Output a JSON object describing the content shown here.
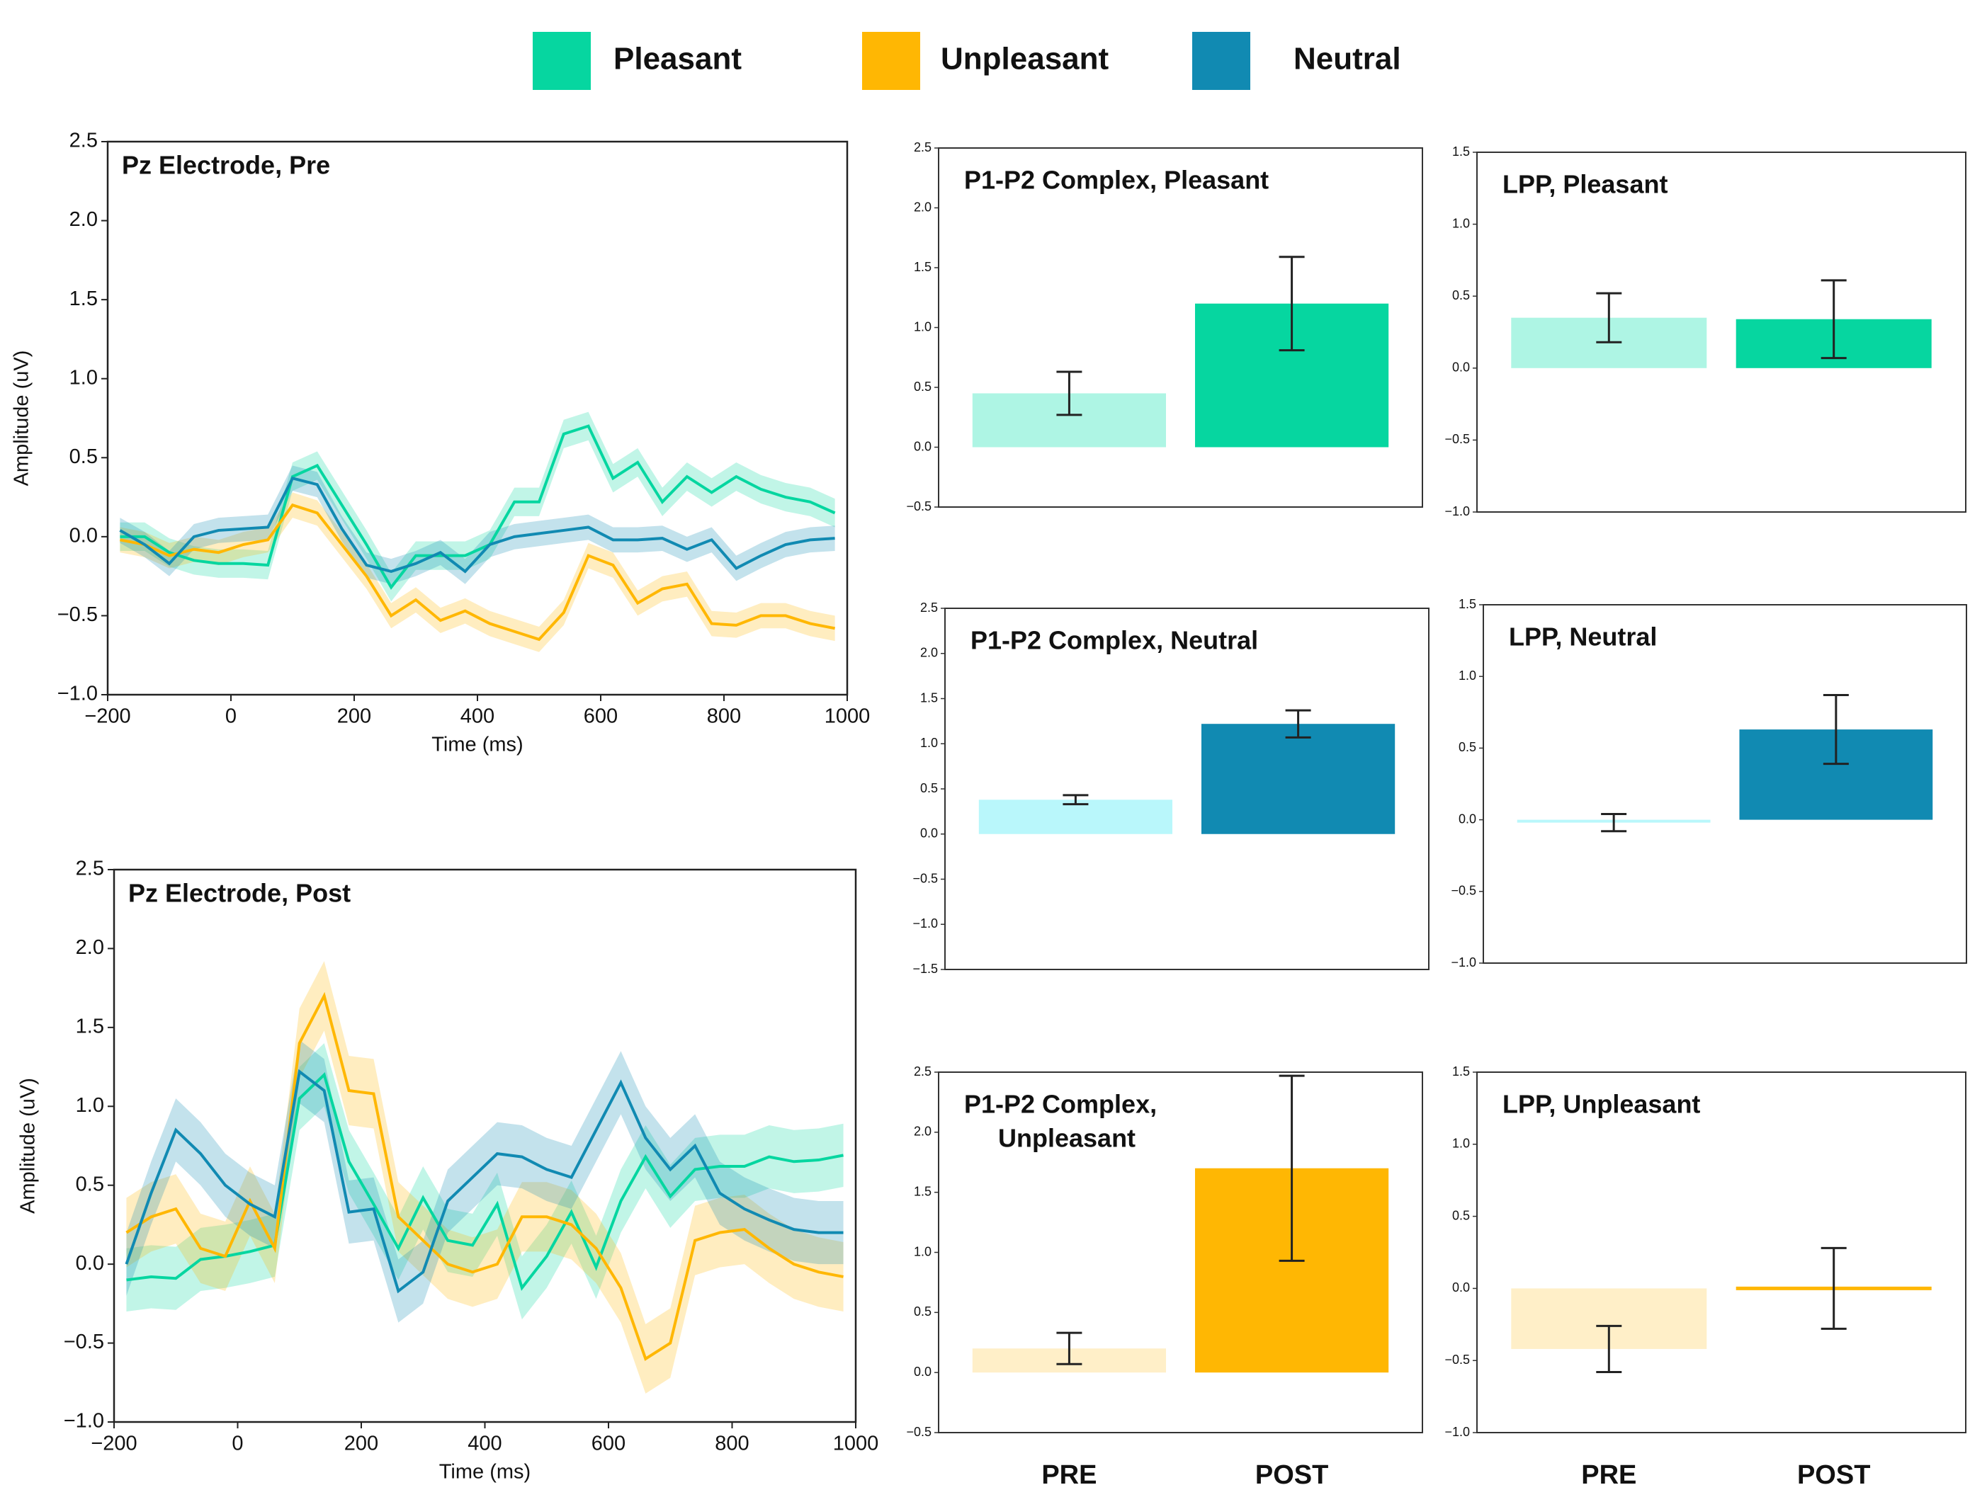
{
  "chart_data": [
    {
      "type": "line",
      "title": "Pz Electrode, Pre",
      "xlabel": "Time (ms)",
      "ylabel": "Amplitude (uV)",
      "legend": "top",
      "x": [
        -180,
        -140,
        -100,
        -60,
        -20,
        20,
        60,
        100,
        140,
        180,
        220,
        260,
        300,
        340,
        380,
        420,
        460,
        500,
        540,
        580,
        620,
        660,
        700,
        740,
        780,
        820,
        860,
        900,
        940,
        980
      ],
      "xlim": [
        -200,
        1000
      ],
      "xticks": [
        {
          "value": -200,
          "label": "−200"
        },
        0,
        200,
        400,
        600,
        800,
        1000
      ],
      "ylim": [
        -1,
        2.5
      ],
      "yticks": [
        {
          "value": -1,
          "label": "−1.0"
        },
        {
          "value": -0.5,
          "label": "−0.5"
        },
        {
          "value": 0,
          "label": "0.0"
        },
        0.5,
        {
          "value": 1,
          "label": "1.0"
        },
        1.5,
        {
          "value": 2,
          "label": "2.0"
        },
        2.5
      ],
      "series": [
        {
          "name": "Pleasant",
          "color": "#06d6a0",
          "band": 0.09,
          "values": [
            0.0,
            0.0,
            -0.1,
            -0.15,
            -0.17,
            -0.17,
            -0.18,
            0.38,
            0.45,
            0.2,
            -0.05,
            -0.32,
            -0.12,
            -0.12,
            -0.12,
            -0.05,
            0.22,
            0.22,
            0.65,
            0.7,
            0.37,
            0.47,
            0.22,
            0.38,
            0.28,
            0.38,
            0.3,
            0.25,
            0.22,
            0.15
          ]
        },
        {
          "name": "Unpleasant",
          "color": "#ffb703",
          "band": 0.08,
          "values": [
            -0.02,
            -0.05,
            -0.12,
            -0.08,
            -0.1,
            -0.05,
            -0.02,
            0.2,
            0.15,
            -0.05,
            -0.25,
            -0.5,
            -0.4,
            -0.53,
            -0.47,
            -0.55,
            -0.6,
            -0.65,
            -0.48,
            -0.12,
            -0.18,
            -0.42,
            -0.33,
            -0.3,
            -0.55,
            -0.56,
            -0.5,
            -0.5,
            -0.55,
            -0.58
          ]
        },
        {
          "name": "Neutral",
          "color": "#118ab2",
          "band": 0.08,
          "values": [
            0.04,
            -0.05,
            -0.17,
            0.0,
            0.04,
            0.05,
            0.06,
            0.37,
            0.33,
            0.05,
            -0.18,
            -0.22,
            -0.17,
            -0.1,
            -0.22,
            -0.05,
            0.0,
            0.02,
            0.04,
            0.06,
            -0.02,
            -0.02,
            -0.01,
            -0.08,
            -0.02,
            -0.2,
            -0.12,
            -0.05,
            -0.02,
            -0.01
          ]
        }
      ]
    },
    {
      "type": "line",
      "title": "Pz Electrode, Post",
      "xlabel": "Time (ms)",
      "ylabel": "Amplitude (uV)",
      "x": [
        -180,
        -140,
        -100,
        -60,
        -20,
        20,
        60,
        100,
        140,
        180,
        220,
        260,
        300,
        340,
        380,
        420,
        460,
        500,
        540,
        580,
        620,
        660,
        700,
        740,
        780,
        820,
        860,
        900,
        940,
        980
      ],
      "xlim": [
        -200,
        1000
      ],
      "xticks": [
        {
          "value": -200,
          "label": "−200"
        },
        0,
        200,
        400,
        600,
        800,
        1000
      ],
      "ylim": [
        -1,
        2.5
      ],
      "yticks": [
        {
          "value": -1,
          "label": "−1.0"
        },
        {
          "value": -0.5,
          "label": "−0.5"
        },
        {
          "value": 0,
          "label": "0.0"
        },
        0.5,
        {
          "value": 1,
          "label": "1.0"
        },
        1.5,
        {
          "value": 2,
          "label": "2.0"
        },
        2.5
      ],
      "series": [
        {
          "name": "Pleasant",
          "color": "#06d6a0",
          "band": 0.2,
          "values": [
            -0.1,
            -0.08,
            -0.09,
            0.03,
            0.05,
            0.08,
            0.12,
            1.05,
            1.2,
            0.65,
            0.38,
            0.1,
            0.42,
            0.15,
            0.12,
            0.38,
            -0.15,
            0.05,
            0.33,
            -0.02,
            0.4,
            0.68,
            0.43,
            0.6,
            0.62,
            0.62,
            0.68,
            0.65,
            0.66,
            0.69
          ]
        },
        {
          "name": "Unpleasant",
          "color": "#ffb703",
          "band": 0.22,
          "values": [
            0.2,
            0.3,
            0.35,
            0.1,
            0.05,
            0.4,
            0.1,
            1.4,
            1.7,
            1.1,
            1.08,
            0.3,
            0.15,
            0.0,
            -0.05,
            0.0,
            0.3,
            0.3,
            0.25,
            0.1,
            -0.15,
            -0.6,
            -0.5,
            0.15,
            0.2,
            0.22,
            0.1,
            0.0,
            -0.05,
            -0.08
          ]
        },
        {
          "name": "Neutral",
          "color": "#118ab2",
          "band": 0.2,
          "values": [
            0.0,
            0.45,
            0.85,
            0.7,
            0.5,
            0.38,
            0.3,
            1.22,
            1.1,
            0.33,
            0.35,
            -0.17,
            -0.05,
            0.4,
            0.55,
            0.7,
            0.68,
            0.6,
            0.55,
            0.85,
            1.15,
            0.8,
            0.6,
            0.75,
            0.45,
            0.35,
            0.28,
            0.22,
            0.2,
            0.2
          ]
        }
      ]
    },
    {
      "type": "bar",
      "title": [
        "P1-P2 Complex, Pleasant"
      ],
      "categories": [
        null,
        null
      ],
      "values": [
        0.45,
        1.2
      ],
      "errors": [
        0.18,
        0.39
      ],
      "colors": [
        "#aef5e4",
        "#06d6a0"
      ],
      "ylim": [
        -0.5,
        2.5
      ],
      "yticks": [
        {
          "value": -0.5,
          "label": "−0.5"
        },
        {
          "value": 0,
          "label": "0.0"
        },
        0.5,
        {
          "value": 1,
          "label": "1.0"
        },
        1.5,
        {
          "value": 2,
          "label": "2.0"
        },
        2.5
      ]
    },
    {
      "type": "bar",
      "title": [
        "LPP, Pleasant"
      ],
      "categories": [
        null,
        null
      ],
      "values": [
        0.35,
        0.34
      ],
      "errors": [
        0.17,
        0.27
      ],
      "colors": [
        "#aef5e4",
        "#06d6a0"
      ],
      "ylim": [
        -1,
        1.5
      ],
      "yticks": [
        {
          "value": -1,
          "label": "−1.0"
        },
        {
          "value": -0.5,
          "label": "−0.5"
        },
        {
          "value": 0,
          "label": "0.0"
        },
        0.5,
        {
          "value": 1,
          "label": "1.0"
        },
        1.5
      ]
    },
    {
      "type": "bar",
      "title": [
        "P1-P2 Complex, Neutral"
      ],
      "categories": [
        null,
        null
      ],
      "values": [
        0.38,
        1.22
      ],
      "errors": [
        0.05,
        0.15
      ],
      "colors": [
        "#b9f7fb",
        "#118ab2"
      ],
      "ylim": [
        -1.5,
        2.5
      ],
      "yticks": [
        {
          "value": -1.5,
          "label": "−1.5"
        },
        {
          "value": -1,
          "label": "−1.0"
        },
        {
          "value": -0.5,
          "label": "−0.5"
        },
        {
          "value": 0,
          "label": "0.0"
        },
        0.5,
        {
          "value": 1,
          "label": "1.0"
        },
        1.5,
        {
          "value": 2,
          "label": "2.0"
        },
        2.5
      ]
    },
    {
      "type": "bar",
      "title": [
        "LPP, Neutral"
      ],
      "categories": [
        null,
        null
      ],
      "values": [
        -0.02,
        0.63
      ],
      "errors": [
        0.06,
        0.24
      ],
      "colors": [
        "#b9f7fb",
        "#118ab2"
      ],
      "ylim": [
        -1,
        1.5
      ],
      "yticks": [
        {
          "value": -1,
          "label": "−1.0"
        },
        {
          "value": -0.5,
          "label": "−0.5"
        },
        {
          "value": 0,
          "label": "0.0"
        },
        0.5,
        {
          "value": 1,
          "label": "1.0"
        },
        1.5
      ]
    },
    {
      "type": "bar",
      "title": [
        "P1-P2 Complex,",
        "Unpleasant"
      ],
      "categories": [
        "PRE",
        "POST"
      ],
      "values": [
        0.2,
        1.7
      ],
      "errors": [
        0.13,
        0.77
      ],
      "colors": [
        "#ffefc8",
        "#ffb703"
      ],
      "ylim": [
        -0.5,
        2.5
      ],
      "yticks": [
        {
          "value": -0.5,
          "label": "−0.5"
        },
        {
          "value": 0,
          "label": "0.0"
        },
        0.5,
        {
          "value": 1,
          "label": "1.0"
        },
        1.5,
        {
          "value": 2,
          "label": "2.0"
        },
        2.5
      ]
    },
    {
      "type": "bar",
      "title": [
        "LPP, Unpleasant"
      ],
      "categories": [
        "PRE",
        "POST"
      ],
      "values": [
        -0.42,
        0.0
      ],
      "errors": [
        0.16,
        0.28
      ],
      "colors": [
        "#ffefc8",
        "#ffb703"
      ],
      "ylim": [
        -1,
        1.5
      ],
      "yticks": [
        {
          "value": -1,
          "label": "−1.0"
        },
        {
          "value": -0.5,
          "label": "−0.5"
        },
        {
          "value": 0,
          "label": "0.0"
        },
        0.5,
        {
          "value": 1,
          "label": "1.0"
        },
        1.5
      ]
    }
  ]
}
